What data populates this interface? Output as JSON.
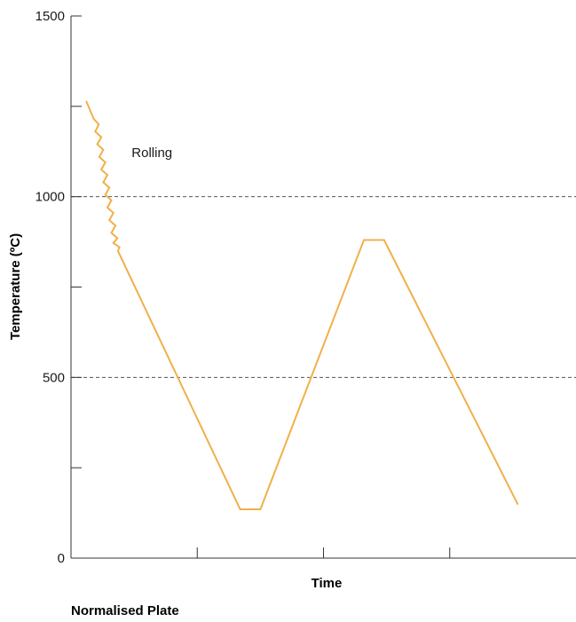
{
  "chart_data": {
    "type": "line",
    "title": "",
    "xlabel": "Time",
    "ylabel": "Temperature (ºC)",
    "ylim": [
      0,
      1500
    ],
    "yticks": [
      0,
      500,
      1000,
      1500
    ],
    "ytick_minor": [
      250,
      750,
      1250
    ],
    "x_minor_ticks": 3,
    "gridlines": [
      500,
      1000
    ],
    "grid_style": "dashed",
    "line_color": "#f0b04a",
    "series": [
      {
        "values_note_free": true,
        "points": [
          [
            0.03,
            1265
          ],
          [
            0.045,
            1215
          ],
          [
            0.055,
            1200
          ],
          [
            0.048,
            1180
          ],
          [
            0.06,
            1165
          ],
          [
            0.052,
            1145
          ],
          [
            0.064,
            1130
          ],
          [
            0.056,
            1110
          ],
          [
            0.068,
            1095
          ],
          [
            0.06,
            1075
          ],
          [
            0.072,
            1060
          ],
          [
            0.064,
            1040
          ],
          [
            0.076,
            1025
          ],
          [
            0.068,
            1005
          ],
          [
            0.08,
            990
          ],
          [
            0.072,
            970
          ],
          [
            0.084,
            955
          ],
          [
            0.076,
            935
          ],
          [
            0.088,
            920
          ],
          [
            0.08,
            900
          ],
          [
            0.092,
            885
          ],
          [
            0.084,
            872
          ],
          [
            0.096,
            860
          ],
          [
            0.093,
            850
          ],
          [
            0.335,
            135
          ],
          [
            0.375,
            135
          ],
          [
            0.58,
            880
          ],
          [
            0.62,
            880
          ],
          [
            0.885,
            148
          ]
        ]
      }
    ],
    "annotations": [
      {
        "text": "Rolling",
        "x": 0.12,
        "y": 1110
      }
    ]
  },
  "caption": "Normalised Plate"
}
